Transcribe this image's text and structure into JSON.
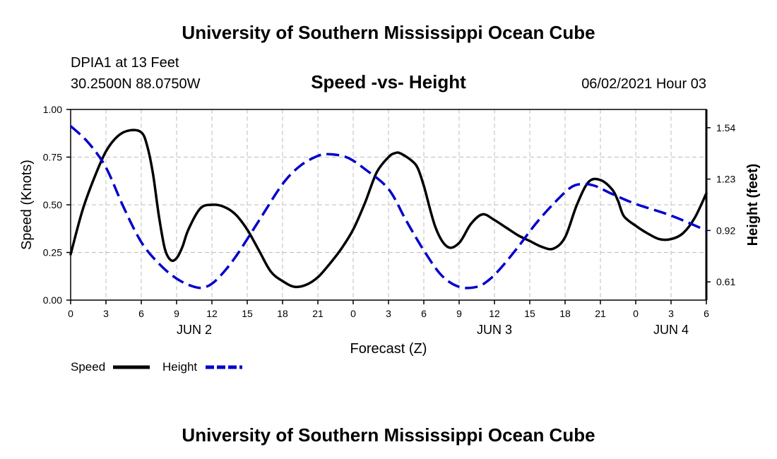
{
  "header": {
    "title": "University of Southern Mississippi Ocean Cube",
    "station": "DPIA1 at 13 Feet",
    "coords": "30.2500N  88.0750W",
    "date": "06/02/2021 Hour 03"
  },
  "footer": {
    "title": "University of Southern Mississippi Ocean Cube"
  },
  "chart_data": {
    "type": "line",
    "title": "Speed -vs- Height",
    "xlabel": "Forecast (Z)",
    "ylabel_left": "Speed (Knots)",
    "ylabel_right": "Height (feet)",
    "x_range": [
      0,
      54
    ],
    "y_left_range": [
      0,
      1
    ],
    "y_right_range": [
      0.5,
      1.65
    ],
    "x_tick_values": [
      0,
      3,
      6,
      9,
      12,
      15,
      18,
      21,
      24,
      27,
      30,
      33,
      36,
      39,
      42,
      45,
      48,
      51,
      54
    ],
    "x_tick_labels": [
      "0",
      "3",
      "6",
      "9",
      "12",
      "15",
      "18",
      "21",
      "0",
      "3",
      "6",
      "9",
      "12",
      "15",
      "18",
      "21",
      "0",
      "3",
      "6"
    ],
    "y_left_ticks": [
      0,
      0.25,
      0.5,
      0.75,
      1.0
    ],
    "y_left_tick_labels": [
      "0.00",
      "0.25",
      "0.50",
      "0.75",
      "1.00"
    ],
    "y_right_ticks": [
      0.61,
      0.92,
      1.23,
      1.54
    ],
    "y_right_tick_labels": [
      "0.61",
      "0.92",
      "1.23",
      "1.54"
    ],
    "date_labels": [
      {
        "x": 10.5,
        "label": "JUN 2"
      },
      {
        "x": 36,
        "label": "JUN 3"
      },
      {
        "x": 51,
        "label": "JUN 4"
      }
    ],
    "grid": true,
    "legend_position": "bottom-left",
    "series": [
      {
        "name": "Speed",
        "axis": "left",
        "color": "#000000",
        "style": "solid",
        "x": [
          0,
          1,
          2,
          3,
          4,
          5,
          6,
          6.5,
          7,
          7.5,
          8,
          8.5,
          9,
          9.5,
          10,
          11,
          12,
          13,
          14,
          15,
          16,
          17,
          18,
          19,
          20,
          21,
          22,
          23,
          24,
          25,
          26,
          27,
          27.5,
          28,
          29,
          29.5,
          30,
          31,
          32,
          33,
          34,
          35,
          36,
          37,
          38,
          39,
          40,
          41,
          42,
          43,
          44,
          45,
          46,
          46.5,
          47,
          48,
          49,
          50,
          51,
          52,
          53,
          54
        ],
        "y": [
          0.24,
          0.47,
          0.64,
          0.78,
          0.86,
          0.89,
          0.88,
          0.81,
          0.66,
          0.44,
          0.27,
          0.21,
          0.22,
          0.28,
          0.37,
          0.48,
          0.5,
          0.49,
          0.45,
          0.37,
          0.26,
          0.15,
          0.1,
          0.07,
          0.08,
          0.12,
          0.19,
          0.27,
          0.37,
          0.51,
          0.67,
          0.75,
          0.77,
          0.77,
          0.73,
          0.69,
          0.6,
          0.38,
          0.28,
          0.3,
          0.4,
          0.45,
          0.42,
          0.38,
          0.34,
          0.31,
          0.28,
          0.27,
          0.33,
          0.5,
          0.62,
          0.63,
          0.58,
          0.52,
          0.44,
          0.39,
          0.35,
          0.32,
          0.32,
          0.35,
          0.43,
          0.56
        ]
      },
      {
        "name": "Height",
        "axis": "right",
        "color": "#0000cc",
        "style": "dashed",
        "x": [
          0,
          1.5,
          3,
          4.5,
          6,
          7.5,
          9,
          10.5,
          11.5,
          12.5,
          14,
          16,
          18,
          19.5,
          21,
          22,
          23.5,
          25,
          27,
          28.5,
          30,
          31.5,
          33,
          34.5,
          35.5,
          36.5,
          38,
          39.5,
          41,
          42.5,
          43.5,
          44.5,
          46,
          48,
          51,
          54
        ],
        "y": [
          1.55,
          1.45,
          1.3,
          1.06,
          0.85,
          0.72,
          0.63,
          0.58,
          0.58,
          0.63,
          0.76,
          0.98,
          1.2,
          1.31,
          1.37,
          1.38,
          1.36,
          1.29,
          1.17,
          0.98,
          0.8,
          0.65,
          0.58,
          0.58,
          0.62,
          0.69,
          0.82,
          0.96,
          1.08,
          1.18,
          1.2,
          1.19,
          1.14,
          1.08,
          1.01,
          0.92
        ]
      }
    ]
  }
}
